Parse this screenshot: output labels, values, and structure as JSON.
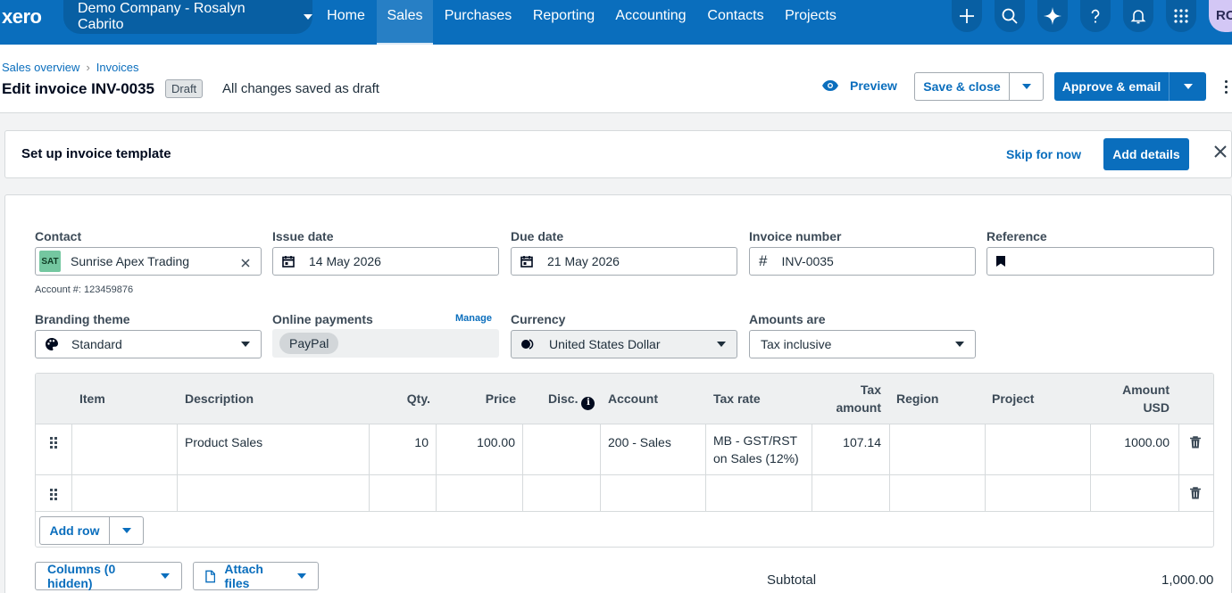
{
  "topnav": {
    "logo": "xero",
    "org_name": "Demo Company - Rosalyn Cabrito",
    "items": [
      {
        "label": "Home"
      },
      {
        "label": "Sales",
        "active": true
      },
      {
        "label": "Purchases"
      },
      {
        "label": "Reporting"
      },
      {
        "label": "Accounting"
      },
      {
        "label": "Contacts"
      },
      {
        "label": "Projects"
      }
    ],
    "avatar_initials": "RC"
  },
  "header": {
    "breadcrumb": [
      "Sales overview",
      "Invoices"
    ],
    "title": "Edit invoice INV-0035",
    "status_badge": "Draft",
    "save_status": "All changes saved as draft",
    "preview_label": "Preview",
    "save_close_label": "Save & close",
    "approve_email_label": "Approve & email"
  },
  "banner": {
    "title": "Set up invoice template",
    "skip_label": "Skip for now",
    "add_details_label": "Add details"
  },
  "form": {
    "contact": {
      "label": "Contact",
      "badge": "SAT",
      "value": "Sunrise Apex Trading",
      "account_number": "Account #: 123459876"
    },
    "issue_date": {
      "label": "Issue date",
      "value": "14 May 2026"
    },
    "due_date": {
      "label": "Due date",
      "value": "21 May 2026"
    },
    "invoice_number": {
      "label": "Invoice number",
      "value": "INV-0035"
    },
    "reference": {
      "label": "Reference",
      "value": ""
    },
    "branding_theme": {
      "label": "Branding theme",
      "value": "Standard"
    },
    "online_payments": {
      "label": "Online payments",
      "manage_label": "Manage",
      "value": "PayPal"
    },
    "currency": {
      "label": "Currency",
      "value": "United States Dollar"
    },
    "amounts_are": {
      "label": "Amounts are",
      "value": "Tax inclusive"
    }
  },
  "table": {
    "headers": {
      "item": "Item",
      "description": "Description",
      "qty": "Qty.",
      "price": "Price",
      "disc": "Disc.",
      "account": "Account",
      "tax_rate": "Tax rate",
      "tax_amount_1": "Tax",
      "tax_amount_2": "amount",
      "region": "Region",
      "project": "Project",
      "amount_1": "Amount",
      "amount_2": "USD"
    },
    "rows": [
      {
        "item": "",
        "description": "Product Sales",
        "qty": "10",
        "price": "100.00",
        "disc": "",
        "account": "200 - Sales",
        "tax_rate_1": "MB - GST/RST",
        "tax_rate_2": "on Sales (12%)",
        "tax_amount": "107.14",
        "region": "",
        "project": "",
        "amount": "1000.00"
      },
      {
        "item": "",
        "description": "",
        "qty": "",
        "price": "",
        "disc": "",
        "account": "",
        "tax_rate_1": "",
        "tax_rate_2": "",
        "tax_amount": "",
        "region": "",
        "project": "",
        "amount": ""
      }
    ],
    "add_row_label": "Add row"
  },
  "footer": {
    "columns_label": "Columns (0 hidden)",
    "attach_label": "Attach files",
    "subtotal_label": "Subtotal",
    "subtotal_value": "1,000.00"
  },
  "colors": {
    "brand_blue": "#0a6ebd",
    "nav_dark_blue": "#085fa3",
    "contact_badge": "#74c7a0"
  }
}
